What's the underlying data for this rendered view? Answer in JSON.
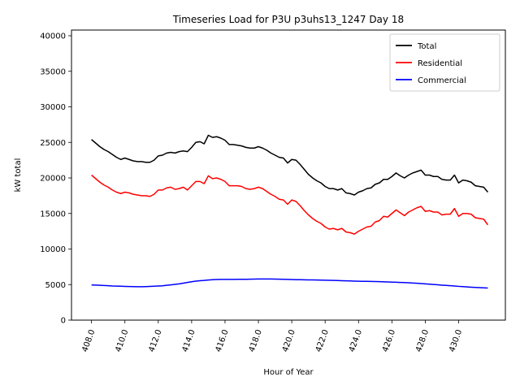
{
  "chart_data": {
    "type": "line",
    "title": "Timeseries Load for P3U p3uhs13_1247  Day 18",
    "xlabel": "Hour of Year",
    "ylabel": "kW total",
    "xlim": [
      406.8,
      432.8
    ],
    "ylim": [
      0,
      40800
    ],
    "xticks": [
      408,
      410,
      412,
      414,
      416,
      418,
      420,
      422,
      424,
      426,
      428,
      430
    ],
    "xtick_labels": [
      "408.0",
      "410.0",
      "412.0",
      "414.0",
      "416.0",
      "418.0",
      "420.0",
      "422.0",
      "424.0",
      "426.0",
      "428.0",
      "430.0"
    ],
    "yticks": [
      0,
      5000,
      10000,
      15000,
      20000,
      25000,
      30000,
      35000,
      40000
    ],
    "ytick_labels": [
      "0",
      "5000",
      "10000",
      "15000",
      "20000",
      "25000",
      "30000",
      "35000",
      "40000"
    ],
    "legend_position": "top-right",
    "x_start": 408.0,
    "x_step": 0.25,
    "series": [
      {
        "name": "Total",
        "color": "#000000",
        "values": [
          25400,
          24900,
          24400,
          24000,
          23700,
          23300,
          22900,
          22600,
          22800,
          22600,
          22400,
          22300,
          22300,
          22200,
          22200,
          22500,
          23100,
          23200,
          23500,
          23600,
          23500,
          23700,
          23800,
          23700,
          24300,
          25000,
          25100,
          24800,
          26000,
          25700,
          25800,
          25600,
          25300,
          24700,
          24700,
          24600,
          24500,
          24300,
          24200,
          24200,
          24400,
          24200,
          23900,
          23500,
          23200,
          22900,
          22800,
          22100,
          22600,
          22500,
          21900,
          21200,
          20500,
          20000,
          19600,
          19300,
          18800,
          18500,
          18500,
          18300,
          18500,
          17900,
          17800,
          17600,
          18000,
          18200,
          18500,
          18600,
          19100,
          19300,
          19800,
          19800,
          20200,
          20700,
          20300,
          20000,
          20400,
          20700,
          20900,
          21100,
          20400,
          20400,
          20200,
          20200,
          19800,
          19700,
          19700,
          20400,
          19300,
          19700,
          19600,
          19400,
          18900,
          18800,
          18700,
          18000
        ]
      },
      {
        "name": "Residential",
        "color": "#ff0000",
        "values": [
          20400,
          19900,
          19400,
          19000,
          18700,
          18300,
          18000,
          17800,
          18000,
          17900,
          17700,
          17600,
          17500,
          17500,
          17400,
          17700,
          18300,
          18300,
          18600,
          18700,
          18400,
          18500,
          18700,
          18300,
          18900,
          19500,
          19500,
          19200,
          20300,
          19900,
          20000,
          19800,
          19500,
          18900,
          18900,
          18900,
          18800,
          18500,
          18400,
          18500,
          18700,
          18500,
          18100,
          17700,
          17400,
          17000,
          16900,
          16300,
          16900,
          16700,
          16100,
          15400,
          14800,
          14300,
          13900,
          13600,
          13100,
          12800,
          12900,
          12700,
          12900,
          12400,
          12300,
          12100,
          12500,
          12800,
          13100,
          13200,
          13800,
          14000,
          14600,
          14500,
          15000,
          15500,
          15100,
          14700,
          15200,
          15500,
          15800,
          16000,
          15300,
          15400,
          15200,
          15200,
          14800,
          14900,
          14900,
          15700,
          14600,
          15000,
          15000,
          14900,
          14400,
          14300,
          14200,
          13400
        ]
      },
      {
        "name": "Commercial",
        "color": "#0000ff",
        "values": [
          4950,
          4930,
          4900,
          4870,
          4840,
          4800,
          4790,
          4770,
          4750,
          4730,
          4720,
          4700,
          4700,
          4720,
          4740,
          4770,
          4800,
          4830,
          4900,
          4960,
          5030,
          5100,
          5200,
          5300,
          5400,
          5480,
          5540,
          5580,
          5640,
          5680,
          5720,
          5730,
          5730,
          5730,
          5730,
          5740,
          5740,
          5750,
          5760,
          5770,
          5780,
          5790,
          5790,
          5780,
          5770,
          5760,
          5740,
          5730,
          5710,
          5690,
          5680,
          5670,
          5660,
          5650,
          5640,
          5630,
          5620,
          5600,
          5590,
          5570,
          5550,
          5530,
          5510,
          5490,
          5470,
          5460,
          5450,
          5440,
          5430,
          5410,
          5390,
          5370,
          5350,
          5330,
          5300,
          5280,
          5250,
          5220,
          5190,
          5150,
          5100,
          5060,
          5010,
          4970,
          4920,
          4880,
          4840,
          4800,
          4750,
          4710,
          4670,
          4630,
          4600,
          4570,
          4540,
          4510
        ]
      }
    ]
  }
}
